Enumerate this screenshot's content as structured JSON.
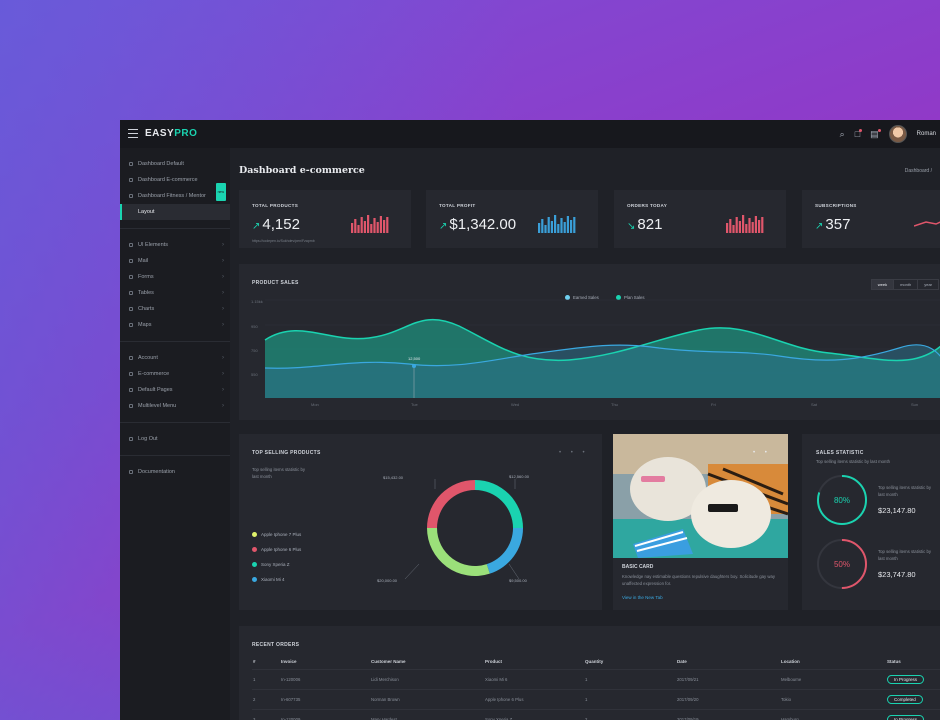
{
  "app": {
    "logo_main": "EASY",
    "logo_accent": "PRO"
  },
  "topbar": {
    "user_name": "Roman"
  },
  "sidebar": {
    "group1": [
      {
        "label": "Dashboard Default",
        "active": false
      },
      {
        "label": "Dashboard E-commerce",
        "active": false
      },
      {
        "label": "Dashboard Fitness / Mentor",
        "active": false,
        "badge": "new"
      },
      {
        "label": "Layout",
        "active": true
      }
    ],
    "group2": [
      {
        "label": "UI Elements"
      },
      {
        "label": "Mail"
      },
      {
        "label": "Forms"
      },
      {
        "label": "Tables"
      },
      {
        "label": "Charts"
      },
      {
        "label": "Maps"
      }
    ],
    "group3": [
      {
        "label": "Account"
      },
      {
        "label": "E-commerce"
      },
      {
        "label": "Default Pages"
      },
      {
        "label": "Multilevel Menu"
      }
    ],
    "group4": [
      {
        "label": "Log Out"
      }
    ],
    "group5": [
      {
        "label": "Documentation"
      }
    ]
  },
  "page": {
    "title": "Dashboard e-commerce",
    "breadcrumb": "Dashboard  /"
  },
  "stats": [
    {
      "label": "TOTAL PRODUCTS",
      "value": "4,152",
      "trend": "up",
      "sub": "https://codepen.io/Sukhdev/pen/Fzapmb",
      "bar_color": "#e0566b"
    },
    {
      "label": "TOTAL PROFIT",
      "value": "$1,342.00",
      "trend": "up",
      "sub": "",
      "bar_color": "#3a9fd8"
    },
    {
      "label": "ORDERS TODAY",
      "value": "821",
      "trend": "down",
      "sub": "",
      "bar_color": "#e0566b"
    },
    {
      "label": "SUBSCRIPTIONS",
      "value": "357",
      "trend": "up",
      "sub": "",
      "bar_color": "#e0566b"
    }
  ],
  "product_sales": {
    "title": "PRODUCT SALES",
    "tabs": [
      "week",
      "month",
      "year"
    ],
    "legend": [
      "Earned Sales",
      "Plan Sales"
    ],
    "tooltip": "12,500",
    "y_ticks": [
      "1.15kk",
      "950",
      "750",
      "550"
    ],
    "x_ticks": [
      "Mon",
      "Tue",
      "Wed",
      "Thu",
      "Fri",
      "Sat",
      "Sun"
    ]
  },
  "top_selling": {
    "title": "TOP SELLING PRODUCTS",
    "description": "Top selling items statistic by last month",
    "items": [
      {
        "label": "Apple Iphone 7 Plus",
        "color": "#dff26b"
      },
      {
        "label": "Apple Iphone 6 Plus",
        "color": "#e0566b"
      },
      {
        "label": "Sony Xperia Z",
        "color": "#1ad3b0"
      },
      {
        "label": "Xiaomi Mi 4",
        "color": "#3aa8e0"
      }
    ],
    "callouts": [
      "$15,432.00",
      "$12,560.00",
      "$20,000.00",
      "$9,500.00"
    ],
    "chart_data": {
      "type": "pie",
      "categories": [
        "Apple Iphone 7 Plus",
        "Apple Iphone 6 Plus",
        "Sony Xperia Z",
        "Xiaomi Mi 4"
      ],
      "values": [
        30,
        25,
        25,
        20
      ],
      "colors": [
        "#9be07a",
        "#e0566b",
        "#1ad3b0",
        "#3aa8e0"
      ]
    }
  },
  "basic_card": {
    "title": "BASIC CARD",
    "text": "Knowledge nay estimable questions repulsive daughters boy. Solicitude gay way unaffected expression for.",
    "link": "View in the New Tab"
  },
  "sales_statistic": {
    "title": "SALES STATISTIC",
    "description": "Top selling items statistic by last month",
    "rings": [
      {
        "percent": "80%",
        "value": 80,
        "color": "#1ad3b0",
        "text": "Top selling items statistic by last month",
        "amount": "$23,147.80"
      },
      {
        "percent": "50%",
        "value": 50,
        "color": "#e0566b",
        "text": "Top selling items statistic by last month",
        "amount": "$23,747.80"
      }
    ]
  },
  "recent_orders": {
    "title": "RECENT ORDERS",
    "columns": [
      "#",
      "Invoice",
      "Customer Name",
      "Product",
      "Quantity",
      "Date",
      "Location",
      "Status"
    ],
    "rows": [
      [
        "1",
        "In-120006",
        "Lidi Merchison",
        "Xiaomi Mi 6",
        "1",
        "2017/09/21",
        "Melbourne",
        "In Progress"
      ],
      [
        "2",
        "In-607735",
        "Norman Brown",
        "Apple Iphone 6 Plus",
        "1",
        "2017/09/20",
        "Tokio",
        "Completed"
      ],
      [
        "3",
        "In-120009",
        "Mary Hardest",
        "Sony Xperia Z",
        "2",
        "2017/09/19",
        "Hamburg",
        "In Progress"
      ]
    ]
  }
}
